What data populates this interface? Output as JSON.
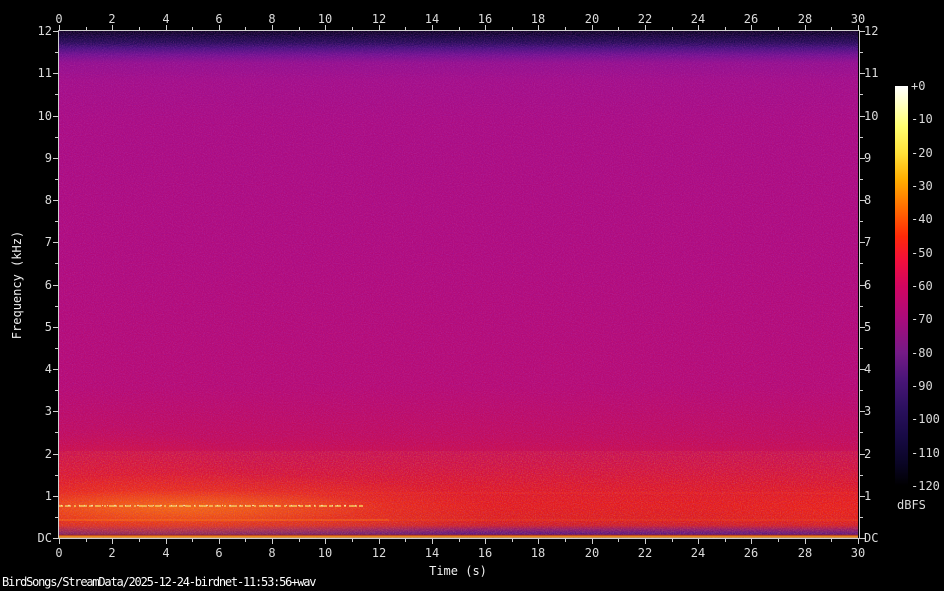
{
  "window": {
    "statusbar_text": "BirdSongs/StreamData/2025-12-24-birdnet-11:53:56+wav"
  },
  "chart_data": {
    "type": "heatmap",
    "subtype": "audio-spectrogram",
    "title": "",
    "xlabel": "Time (s)",
    "ylabel": "Frequency (kHz)",
    "x_range": [
      0,
      30
    ],
    "y_range": [
      0,
      12
    ],
    "x_minor_step": 1,
    "y_minor_step": 0.5,
    "grid": false,
    "x_ticks": [
      {
        "value": 0,
        "label": "0"
      },
      {
        "value": 2,
        "label": "2"
      },
      {
        "value": 4,
        "label": "4"
      },
      {
        "value": 6,
        "label": "6"
      },
      {
        "value": 8,
        "label": "8"
      },
      {
        "value": 10,
        "label": "10"
      },
      {
        "value": 12,
        "label": "12"
      },
      {
        "value": 14,
        "label": "14"
      },
      {
        "value": 16,
        "label": "16"
      },
      {
        "value": 18,
        "label": "18"
      },
      {
        "value": 20,
        "label": "20"
      },
      {
        "value": 22,
        "label": "22"
      },
      {
        "value": 24,
        "label": "24"
      },
      {
        "value": 26,
        "label": "26"
      },
      {
        "value": 28,
        "label": "28"
      },
      {
        "value": 30,
        "label": "30"
      }
    ],
    "y_ticks": [
      {
        "value": 12,
        "label": "12"
      },
      {
        "value": 11,
        "label": "11"
      },
      {
        "value": 10,
        "label": "10"
      },
      {
        "value": 9,
        "label": "9"
      },
      {
        "value": 8,
        "label": "8"
      },
      {
        "value": 7,
        "label": "7"
      },
      {
        "value": 6,
        "label": "6"
      },
      {
        "value": 5,
        "label": "5"
      },
      {
        "value": 4,
        "label": "4"
      },
      {
        "value": 3,
        "label": "3"
      },
      {
        "value": 2,
        "label": "2"
      },
      {
        "value": 1,
        "label": "1"
      },
      {
        "value": 0,
        "label": "DC"
      }
    ],
    "colorbar": {
      "label": "dBFS",
      "range": [
        0,
        -120
      ],
      "ticks": [
        {
          "value": 0,
          "label": "+0"
        },
        {
          "value": -10,
          "label": "-10"
        },
        {
          "value": -20,
          "label": "-20"
        },
        {
          "value": -30,
          "label": "-30"
        },
        {
          "value": -40,
          "label": "-40"
        },
        {
          "value": -50,
          "label": "-50"
        },
        {
          "value": -60,
          "label": "-60"
        },
        {
          "value": -70,
          "label": "-70"
        },
        {
          "value": -80,
          "label": "-80"
        },
        {
          "value": -90,
          "label": "-90"
        },
        {
          "value": -100,
          "label": "-100"
        },
        {
          "value": -110,
          "label": "-110"
        },
        {
          "value": -120,
          "label": "-120"
        }
      ],
      "stops": [
        {
          "db": 0,
          "color": "#ffffff"
        },
        {
          "db": -5,
          "color": "#ffffc8"
        },
        {
          "db": -12,
          "color": "#ffff70"
        },
        {
          "db": -20,
          "color": "#ffe13a"
        },
        {
          "db": -28,
          "color": "#ffae00"
        },
        {
          "db": -37,
          "color": "#ff6a00"
        },
        {
          "db": -45,
          "color": "#ff2a08"
        },
        {
          "db": -52,
          "color": "#f3103a"
        },
        {
          "db": -60,
          "color": "#d20560"
        },
        {
          "db": -70,
          "color": "#a90b7c"
        },
        {
          "db": -80,
          "color": "#751a86"
        },
        {
          "db": -88,
          "color": "#4a1578"
        },
        {
          "db": -97,
          "color": "#2a105e"
        },
        {
          "db": -105,
          "color": "#180a46"
        },
        {
          "db": -113,
          "color": "#0a0526"
        },
        {
          "db": -120,
          "color": "#000000"
        }
      ]
    },
    "features": [
      {
        "name": "background-noise-floor",
        "time_s": [
          0,
          30
        ],
        "freq_khz": [
          2,
          11.5
        ],
        "level_dbfs": -58
      },
      {
        "name": "nyquist-rolloff-band",
        "time_s": [
          0,
          30
        ],
        "freq_khz": [
          11.7,
          12
        ],
        "level_dbfs": -110
      },
      {
        "name": "low-frequency-noise-band",
        "time_s": [
          0,
          30
        ],
        "freq_khz": [
          0,
          1.8
        ],
        "level_dbfs": -45
      },
      {
        "name": "tonal-line",
        "time_s": [
          0,
          11.5
        ],
        "freq_khz": 0.75,
        "level_dbfs": -28
      },
      {
        "name": "faint-tonal-line",
        "time_s": [
          0,
          30
        ],
        "freq_khz": 0.45,
        "level_dbfs": -42
      },
      {
        "name": "dc-offset-line",
        "time_s": [
          0,
          30
        ],
        "freq_khz": 0,
        "level_dbfs": -22
      }
    ]
  },
  "palette": {
    "background": "#000000",
    "axis_text": "#dcdcdc",
    "axis_line": "#cfcfcf",
    "field_magenta": "#b1097a",
    "field_purple_speckle": "#4d0d8c",
    "hot_red": "#e81712",
    "tonal_yellow": "#ffd24a",
    "dc_line_orange": "#f37a00"
  }
}
